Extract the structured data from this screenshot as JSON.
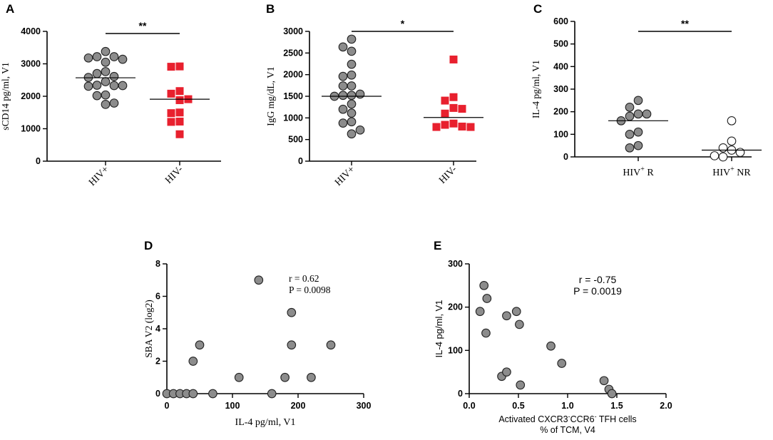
{
  "panels": {
    "A": {
      "letter": "A"
    },
    "B": {
      "letter": "B"
    },
    "C": {
      "letter": "C"
    },
    "D": {
      "letter": "D"
    },
    "E": {
      "letter": "E"
    }
  },
  "chart_data": [
    {
      "id": "A",
      "type": "scatter",
      "subtype": "dot-plot",
      "ylabel": "sCD14 pg/ml, V1",
      "ylim": [
        0,
        4000
      ],
      "yticks": [
        0,
        1000,
        2000,
        3000,
        4000
      ],
      "categories": [
        "HIV+",
        "HIV-"
      ],
      "significance": "**",
      "series": [
        {
          "name": "HIV+",
          "marker": "circle",
          "color": "#8c8c8c",
          "median": 2570,
          "values": [
            3380,
            3180,
            3220,
            3050,
            3140,
            3220,
            2760,
            2700,
            2580,
            2610,
            2450,
            2340,
            2330,
            2310,
            2330,
            2040,
            2020,
            1750,
            1790
          ]
        },
        {
          "name": "HIV-",
          "marker": "square",
          "color": "#e8202e",
          "median": 1910,
          "values": [
            2910,
            2920,
            2160,
            2080,
            1880,
            1910,
            1500,
            1480,
            1220,
            1210,
            830
          ]
        }
      ]
    },
    {
      "id": "B",
      "type": "scatter",
      "subtype": "dot-plot",
      "ylabel": "IgG mg/dL, V1",
      "ylim": [
        0,
        3000
      ],
      "yticks": [
        0,
        500,
        1000,
        1500,
        2000,
        2500,
        3000
      ],
      "categories": [
        "HIV+",
        "HIV-"
      ],
      "significance": "*",
      "series": [
        {
          "name": "HIV+",
          "marker": "circle",
          "color": "#8c8c8c",
          "median": 1500,
          "values": [
            2820,
            2640,
            2540,
            2240,
            1960,
            1990,
            1740,
            1740,
            1520,
            1550,
            1520,
            1500,
            1320,
            1110,
            1200,
            880,
            910,
            720,
            630
          ]
        },
        {
          "name": "HIV-",
          "marker": "square",
          "color": "#e8202e",
          "median": 1010,
          "values": [
            2350,
            1480,
            1400,
            1230,
            1210,
            1100,
            870,
            840,
            790,
            790,
            800
          ]
        }
      ]
    },
    {
      "id": "C",
      "type": "scatter",
      "subtype": "dot-plot",
      "ylabel": "IL-4 pg/ml, V1",
      "ylim": [
        0,
        600
      ],
      "yticks": [
        0,
        100,
        200,
        300,
        400,
        500,
        600
      ],
      "categories": [
        "HIV+ R",
        "HIV+ NR"
      ],
      "category_parts": [
        {
          "base": "HIV",
          "sup": "+",
          "suffix": " R"
        },
        {
          "base": "HIV",
          "sup": "+",
          "suffix": " NR"
        }
      ],
      "significance": "**",
      "series": [
        {
          "name": "HIV+ R",
          "marker": "circle",
          "fill": "gray",
          "median": 160,
          "values": [
            250,
            220,
            190,
            190,
            180,
            160,
            110,
            100,
            50,
            40
          ]
        },
        {
          "name": "HIV+ NR",
          "marker": "circle",
          "fill": "white",
          "median": 30,
          "values": [
            160,
            70,
            40,
            30,
            20,
            5,
            0
          ]
        }
      ]
    },
    {
      "id": "D",
      "type": "scatter",
      "xlabel": "IL-4 pg/ml,  V1",
      "ylabel": "SBA V2 (log2)",
      "xlim": [
        0,
        300
      ],
      "ylim": [
        0,
        8
      ],
      "xticks": [
        0,
        100,
        200,
        300
      ],
      "yticks": [
        0,
        2,
        4,
        6,
        8
      ],
      "annotation": {
        "r": "r = 0.62",
        "p": "P = 0.0098"
      },
      "points": [
        {
          "x": 0,
          "y": 0
        },
        {
          "x": 10,
          "y": 0
        },
        {
          "x": 20,
          "y": 0
        },
        {
          "x": 30,
          "y": 0
        },
        {
          "x": 40,
          "y": 0
        },
        {
          "x": 70,
          "y": 0
        },
        {
          "x": 160,
          "y": 0
        },
        {
          "x": 40,
          "y": 2
        },
        {
          "x": 50,
          "y": 3
        },
        {
          "x": 110,
          "y": 1
        },
        {
          "x": 140,
          "y": 7
        },
        {
          "x": 180,
          "y": 1
        },
        {
          "x": 190,
          "y": 5
        },
        {
          "x": 190,
          "y": 3
        },
        {
          "x": 220,
          "y": 1
        },
        {
          "x": 250,
          "y": 3
        }
      ]
    },
    {
      "id": "E",
      "type": "scatter",
      "xlabel_parts": {
        "line1_pre": "Activated CXCR3",
        "sup1": "-",
        "mid": "CCR6",
        "sup2": "-",
        "line1_post": "  TFH cells",
        "line2": "% of TCM, V4"
      },
      "xlabel": "Activated CXCR3-CCR6-  TFH cells % of TCM, V4",
      "ylabel": "IL-4 pg/ml,  V1",
      "xlim": [
        0,
        2.0
      ],
      "ylim": [
        0,
        300
      ],
      "xticks": [
        0.0,
        0.5,
        1.0,
        1.5,
        2.0
      ],
      "xtick_labels": [
        "0.0",
        "0.5",
        "1.0",
        "1.5",
        "2.0"
      ],
      "yticks": [
        0,
        100,
        200,
        300
      ],
      "annotation": {
        "r": "r = -0.75",
        "p": "P = 0.0019"
      },
      "points": [
        {
          "x": 0.15,
          "y": 250
        },
        {
          "x": 0.18,
          "y": 220
        },
        {
          "x": 0.11,
          "y": 190
        },
        {
          "x": 0.17,
          "y": 140
        },
        {
          "x": 0.38,
          "y": 180
        },
        {
          "x": 0.48,
          "y": 190
        },
        {
          "x": 0.51,
          "y": 160
        },
        {
          "x": 0.33,
          "y": 40
        },
        {
          "x": 0.38,
          "y": 50
        },
        {
          "x": 0.52,
          "y": 20
        },
        {
          "x": 0.83,
          "y": 110
        },
        {
          "x": 0.94,
          "y": 70
        },
        {
          "x": 1.37,
          "y": 30
        },
        {
          "x": 1.42,
          "y": 10
        },
        {
          "x": 1.45,
          "y": 0
        }
      ]
    }
  ]
}
